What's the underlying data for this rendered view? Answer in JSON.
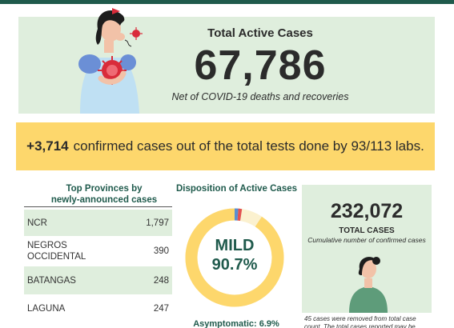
{
  "hero": {
    "title": "Total Active Cases",
    "number": "67,786",
    "subtitle": "Net of COVID-19 deaths and recoveries"
  },
  "banner": {
    "count": "+3,714",
    "text": "confirmed cases out of the total tests done by 93/113 labs."
  },
  "provinces": {
    "title_line1": "Top Provinces by",
    "title_line2": "newly-announced cases",
    "rows": [
      {
        "name": "NCR",
        "value": "1,797"
      },
      {
        "name": "NEGROS OCCIDENTAL",
        "value": "390"
      },
      {
        "name": "BATANGAS",
        "value": "248"
      },
      {
        "name": "LAGUNA",
        "value": "247"
      }
    ]
  },
  "disposition": {
    "title": "Disposition of Active Cases",
    "center_label": "MILD",
    "center_value": "90.7%",
    "asymptomatic": "Asymptomatic: 6.9%"
  },
  "chart_data": {
    "type": "pie",
    "title": "Disposition of Active Cases",
    "values": [
      90.7,
      6.9
    ],
    "labels": [
      "MILD",
      "Asymptomatic"
    ]
  },
  "totals": {
    "number": "232,072",
    "label": "TOTAL CASES",
    "subtitle": "Cumulative number of confirmed cases",
    "note": "45 cases were removed from total case count. The total cases reported may be"
  },
  "colors": {
    "accent_dark_green": "#1f5a4c",
    "light_green": "#dfeedd",
    "yellow": "#fdd76c",
    "virus_red": "#d92b3a"
  }
}
